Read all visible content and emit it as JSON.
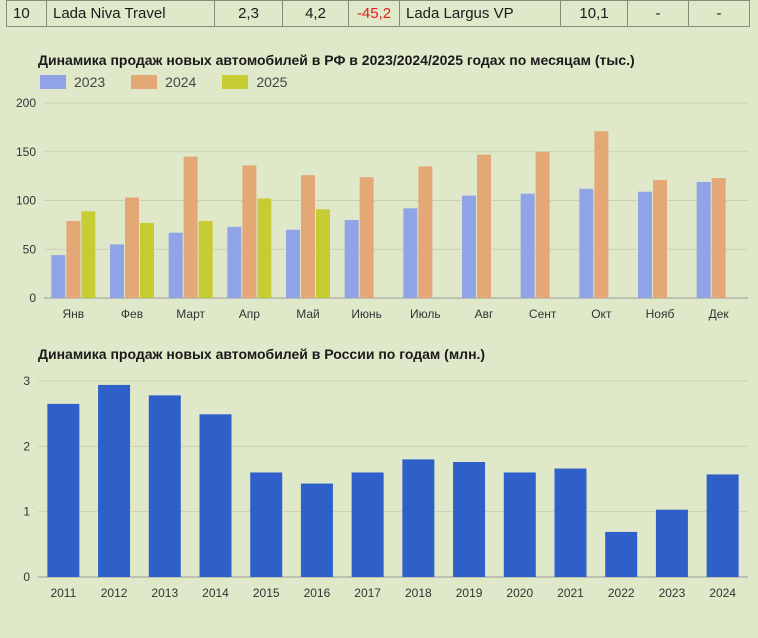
{
  "table_row": {
    "rank": "10",
    "model1": "Lada Niva Travel",
    "val1": "2,3",
    "val2": "4,2",
    "change": "-45,2",
    "model2": "Lada Largus VP",
    "val3": "10,1",
    "val4": "-",
    "val5": "-"
  },
  "chart_data": [
    {
      "type": "bar",
      "title": "Динамика продаж новых автомобилей в РФ в 2023/2024/2025 годах по месяцам (тыс.)",
      "categories": [
        "Янв",
        "Фев",
        "Март",
        "Апр",
        "Май",
        "Июнь",
        "Июль",
        "Авг",
        "Сент",
        "Окт",
        "Нояб",
        "Дек"
      ],
      "series": [
        {
          "name": "2023",
          "color": "#8fa3e6",
          "values": [
            44,
            55,
            67,
            73,
            70,
            80,
            92,
            105,
            107,
            112,
            109,
            119
          ]
        },
        {
          "name": "2024",
          "color": "#e4a876",
          "values": [
            79,
            103,
            145,
            136,
            126,
            124,
            135,
            147,
            150,
            171,
            121,
            123
          ]
        },
        {
          "name": "2025",
          "color": "#c6cc33",
          "values": [
            89,
            77,
            79,
            102,
            91,
            null,
            null,
            null,
            null,
            null,
            null,
            null
          ]
        }
      ],
      "ylim": [
        0,
        200
      ],
      "yticks": [
        0,
        50,
        100,
        150,
        200
      ],
      "legend": "top-left",
      "grid": true
    },
    {
      "type": "bar",
      "title": "Динамика продаж новых автомобилей в России по годам (млн.)",
      "categories": [
        "2011",
        "2012",
        "2013",
        "2014",
        "2015",
        "2016",
        "2017",
        "2018",
        "2019",
        "2020",
        "2021",
        "2022",
        "2023",
        "2024"
      ],
      "series": [
        {
          "name": "sales",
          "color": "#2f5fc8",
          "values": [
            2.65,
            2.94,
            2.78,
            2.49,
            1.6,
            1.43,
            1.6,
            1.8,
            1.76,
            1.6,
            1.66,
            0.69,
            1.03,
            1.57
          ]
        }
      ],
      "ylim": [
        0,
        3
      ],
      "yticks": [
        0,
        1,
        2,
        3
      ],
      "grid": true
    }
  ]
}
